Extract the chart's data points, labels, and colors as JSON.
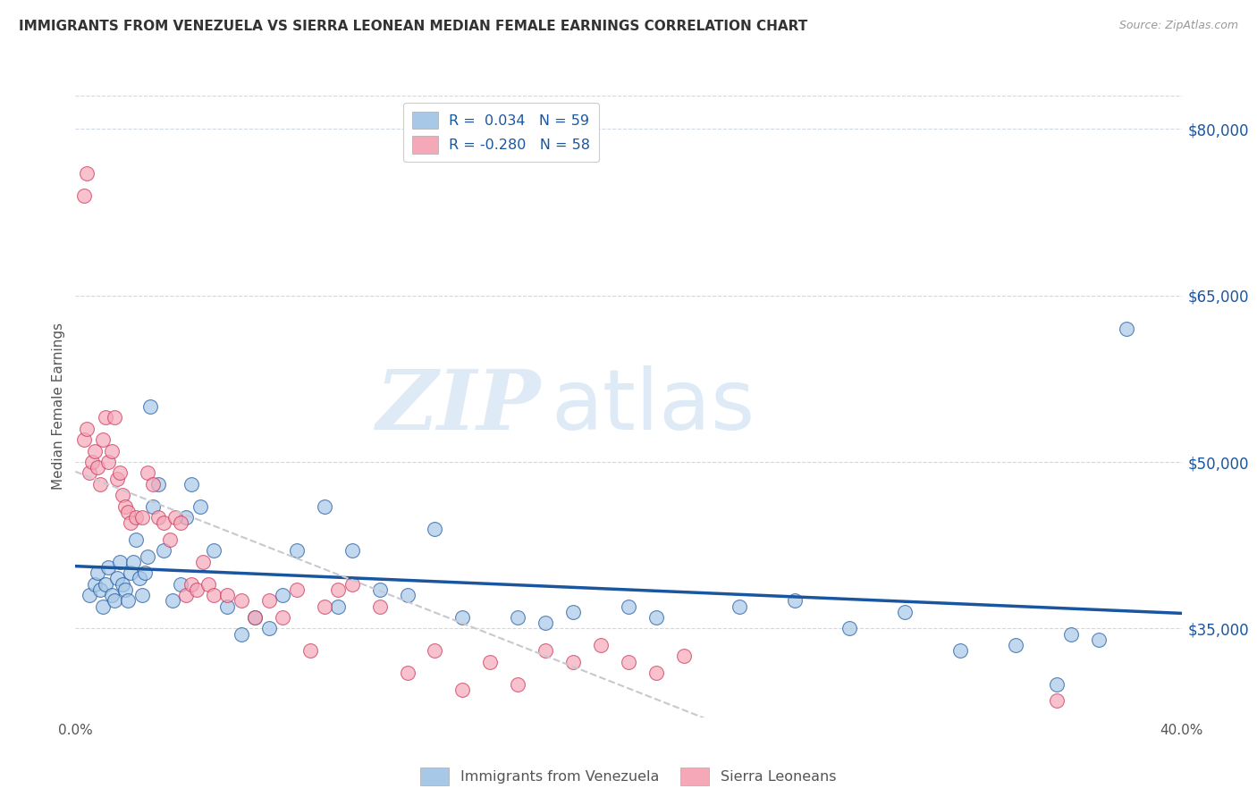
{
  "title": "IMMIGRANTS FROM VENEZUELA VS SIERRA LEONEAN MEDIAN FEMALE EARNINGS CORRELATION CHART",
  "source": "Source: ZipAtlas.com",
  "ylabel": "Median Female Earnings",
  "xlim": [
    0.0,
    0.4
  ],
  "ylim": [
    27000,
    83000
  ],
  "yticks": [
    35000,
    50000,
    65000,
    80000
  ],
  "ytick_labels": [
    "$35,000",
    "$50,000",
    "$65,000",
    "$80,000"
  ],
  "xticks": [
    0.0,
    0.1,
    0.2,
    0.3,
    0.4
  ],
  "xtick_labels": [
    "0.0%",
    "",
    "",
    "",
    "40.0%"
  ],
  "color_venezuela": "#a8c8e8",
  "color_sierra": "#f4a8b8",
  "line_color_venezuela": "#1a56a0",
  "line_color_sierra": "#cc3355",
  "line_color_sierra_reg": "#c8c8d0",
  "watermark_zip": "ZIP",
  "watermark_atlas": "atlas",
  "background_color": "#ffffff",
  "grid_color": "#d0d8e8",
  "venezuela_scatter_x": [
    0.005,
    0.007,
    0.008,
    0.009,
    0.01,
    0.011,
    0.012,
    0.013,
    0.014,
    0.015,
    0.016,
    0.017,
    0.018,
    0.019,
    0.02,
    0.021,
    0.022,
    0.023,
    0.024,
    0.025,
    0.026,
    0.027,
    0.028,
    0.03,
    0.032,
    0.035,
    0.038,
    0.04,
    0.042,
    0.045,
    0.05,
    0.055,
    0.06,
    0.065,
    0.07,
    0.075,
    0.08,
    0.09,
    0.095,
    0.1,
    0.11,
    0.12,
    0.13,
    0.14,
    0.16,
    0.17,
    0.18,
    0.2,
    0.21,
    0.24,
    0.26,
    0.28,
    0.3,
    0.32,
    0.34,
    0.355,
    0.36,
    0.37,
    0.38
  ],
  "venezuela_scatter_y": [
    38000,
    39000,
    40000,
    38500,
    37000,
    39000,
    40500,
    38000,
    37500,
    39500,
    41000,
    39000,
    38500,
    37500,
    40000,
    41000,
    43000,
    39500,
    38000,
    40000,
    41500,
    55000,
    46000,
    48000,
    42000,
    37500,
    39000,
    45000,
    48000,
    46000,
    42000,
    37000,
    34500,
    36000,
    35000,
    38000,
    42000,
    46000,
    37000,
    42000,
    38500,
    38000,
    44000,
    36000,
    36000,
    35500,
    36500,
    37000,
    36000,
    37000,
    37500,
    35000,
    36500,
    33000,
    33500,
    30000,
    34500,
    34000,
    62000
  ],
  "sierra_scatter_x": [
    0.003,
    0.004,
    0.005,
    0.006,
    0.007,
    0.008,
    0.009,
    0.01,
    0.011,
    0.012,
    0.013,
    0.014,
    0.015,
    0.016,
    0.017,
    0.018,
    0.019,
    0.02,
    0.022,
    0.024,
    0.026,
    0.028,
    0.03,
    0.032,
    0.034,
    0.036,
    0.038,
    0.04,
    0.042,
    0.044,
    0.046,
    0.048,
    0.05,
    0.055,
    0.06,
    0.065,
    0.07,
    0.075,
    0.08,
    0.085,
    0.09,
    0.095,
    0.1,
    0.11,
    0.12,
    0.13,
    0.14,
    0.15,
    0.16,
    0.17,
    0.18,
    0.19,
    0.2,
    0.21,
    0.22,
    0.003,
    0.004,
    0.355
  ],
  "sierra_scatter_y": [
    74000,
    76000,
    49000,
    50000,
    51000,
    49500,
    48000,
    52000,
    54000,
    50000,
    51000,
    54000,
    48500,
    49000,
    47000,
    46000,
    45500,
    44500,
    45000,
    45000,
    49000,
    48000,
    45000,
    44500,
    43000,
    45000,
    44500,
    38000,
    39000,
    38500,
    41000,
    39000,
    38000,
    38000,
    37500,
    36000,
    37500,
    36000,
    38500,
    33000,
    37000,
    38500,
    39000,
    37000,
    31000,
    33000,
    29500,
    32000,
    30000,
    33000,
    32000,
    33500,
    32000,
    31000,
    32500,
    52000,
    53000,
    28500
  ]
}
